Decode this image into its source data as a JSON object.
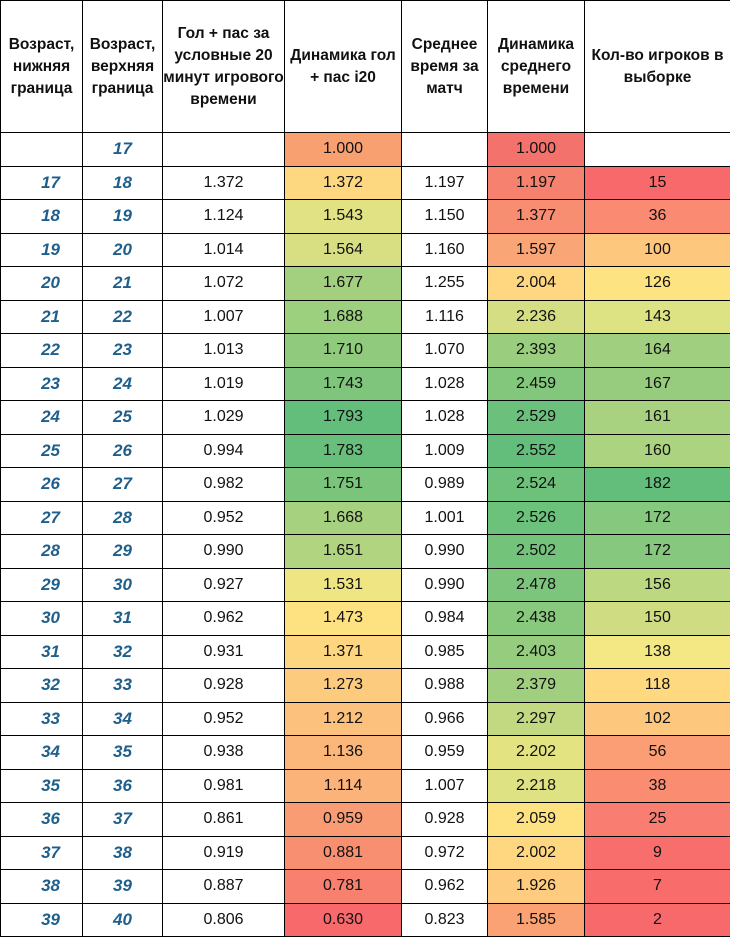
{
  "headers": [
    "Возраст, нижняя граница",
    "Возраст, верхняя граница",
    "Гол + пас за условные 20 минут игрового времени",
    "Динамика гол + пас i20",
    "Среднее время за матч",
    "Динамика среднего времени",
    "Кол-во игроков в выборке"
  ],
  "rows": [
    {
      "lo": "",
      "hi": "17",
      "g": "",
      "gd": "1.000",
      "t": "",
      "td": "1.000",
      "n": "",
      "gd_color": "#f8a070",
      "td_color": "#f4726c",
      "n_color": "#ffffff"
    },
    {
      "lo": "17",
      "hi": "18",
      "g": "1.372",
      "gd": "1.372",
      "t": "1.197",
      "td": "1.197",
      "n": "15",
      "gd_color": "#fed880",
      "td_color": "#f6816f",
      "n_color": "#f8696b"
    },
    {
      "lo": "18",
      "hi": "19",
      "g": "1.124",
      "gd": "1.543",
      "t": "1.150",
      "td": "1.377",
      "n": "36",
      "gd_color": "#e0e283",
      "td_color": "#f88e71",
      "n_color": "#fa8b72"
    },
    {
      "lo": "19",
      "hi": "20",
      "g": "1.014",
      "gd": "1.564",
      "t": "1.160",
      "td": "1.597",
      "n": "100",
      "gd_color": "#d7df82",
      "td_color": "#faa575",
      "n_color": "#fdc77d"
    },
    {
      "lo": "20",
      "hi": "21",
      "g": "1.072",
      "gd": "1.677",
      "t": "1.255",
      "td": "2.004",
      "n": "126",
      "gd_color": "#a2d07f",
      "td_color": "#fed780",
      "n_color": "#fee382"
    },
    {
      "lo": "21",
      "hi": "22",
      "g": "1.007",
      "gd": "1.688",
      "t": "1.116",
      "td": "2.236",
      "n": "143",
      "gd_color": "#9ccf7e",
      "td_color": "#d5de82",
      "n_color": "#dde282"
    },
    {
      "lo": "22",
      "hi": "23",
      "g": "1.013",
      "gd": "1.710",
      "t": "1.070",
      "td": "2.393",
      "n": "164",
      "gd_color": "#90cb7d",
      "td_color": "#9acd7e",
      "n_color": "#a0cf7f"
    },
    {
      "lo": "23",
      "hi": "24",
      "g": "1.019",
      "gd": "1.743",
      "t": "1.028",
      "td": "2.459",
      "n": "167",
      "gd_color": "#7fc67c",
      "td_color": "#83c77c",
      "n_color": "#97cc7e"
    },
    {
      "lo": "24",
      "hi": "25",
      "g": "1.029",
      "gd": "1.793",
      "t": "1.028",
      "td": "2.529",
      "n": "161",
      "gd_color": "#63be7b",
      "td_color": "#6bc17b",
      "n_color": "#a8d27f"
    },
    {
      "lo": "25",
      "hi": "26",
      "g": "0.994",
      "gd": "1.783",
      "t": "1.009",
      "td": "2.552",
      "n": "160",
      "gd_color": "#68bf7b",
      "td_color": "#63be7b",
      "n_color": "#acd37f"
    },
    {
      "lo": "26",
      "hi": "27",
      "g": "0.982",
      "gd": "1.751",
      "t": "0.989",
      "td": "2.524",
      "n": "182",
      "gd_color": "#7ac47c",
      "td_color": "#6dc17b",
      "n_color": "#63be7b"
    },
    {
      "lo": "27",
      "hi": "28",
      "g": "0.952",
      "gd": "1.668",
      "t": "1.001",
      "td": "2.526",
      "n": "172",
      "gd_color": "#a6d17f",
      "td_color": "#6cc17b",
      "n_color": "#86c87d"
    },
    {
      "lo": "28",
      "hi": "29",
      "g": "0.990",
      "gd": "1.651",
      "t": "0.990",
      "td": "2.502",
      "n": "172",
      "gd_color": "#b0d47f",
      "td_color": "#73c37b",
      "n_color": "#86c87d"
    },
    {
      "lo": "29",
      "hi": "30",
      "g": "0.927",
      "gd": "1.531",
      "t": "0.990",
      "td": "2.478",
      "n": "156",
      "gd_color": "#efe683",
      "td_color": "#7dc57c",
      "n_color": "#bcd880"
    },
    {
      "lo": "30",
      "hi": "31",
      "g": "0.962",
      "gd": "1.473",
      "t": "0.984",
      "td": "2.438",
      "n": "150",
      "gd_color": "#fee282",
      "td_color": "#89c97d",
      "n_color": "#d0dc81"
    },
    {
      "lo": "31",
      "hi": "32",
      "g": "0.931",
      "gd": "1.371",
      "t": "0.985",
      "td": "2.403",
      "n": "138",
      "gd_color": "#fed680",
      "td_color": "#95cc7e",
      "n_color": "#f3e883"
    },
    {
      "lo": "32",
      "hi": "33",
      "g": "0.928",
      "gd": "1.273",
      "t": "0.988",
      "td": "2.379",
      "n": "118",
      "gd_color": "#fdcb7e",
      "td_color": "#9fcf7f",
      "n_color": "#fed980"
    },
    {
      "lo": "33",
      "hi": "34",
      "g": "0.952",
      "gd": "1.212",
      "t": "0.966",
      "td": "2.297",
      "n": "102",
      "gd_color": "#fcc17c",
      "td_color": "#c3d981",
      "n_color": "#fdc87d"
    },
    {
      "lo": "34",
      "hi": "35",
      "g": "0.938",
      "gd": "1.136",
      "t": "0.959",
      "td": "2.202",
      "n": "56",
      "gd_color": "#fbb67a",
      "td_color": "#e4e382",
      "n_color": "#fb9e75"
    },
    {
      "lo": "35",
      "hi": "36",
      "g": "0.981",
      "gd": "1.114",
      "t": "1.007",
      "td": "2.218",
      "n": "38",
      "gd_color": "#fbb379",
      "td_color": "#dee283",
      "n_color": "#fa8c72"
    },
    {
      "lo": "36",
      "hi": "37",
      "g": "0.861",
      "gd": "0.959",
      "t": "0.928",
      "td": "2.059",
      "n": "25",
      "gd_color": "#f99c74",
      "td_color": "#fee282",
      "n_color": "#f97d70"
    },
    {
      "lo": "37",
      "hi": "38",
      "g": "0.919",
      "gd": "0.881",
      "t": "0.972",
      "td": "2.002",
      "n": "9",
      "gd_color": "#f88f71",
      "td_color": "#fed780",
      "n_color": "#f86e6c"
    },
    {
      "lo": "38",
      "hi": "39",
      "g": "0.887",
      "gd": "0.781",
      "t": "0.962",
      "td": "1.926",
      "n": "7",
      "gd_color": "#f7806f",
      "td_color": "#fdcc7e",
      "n_color": "#f86c6b"
    },
    {
      "lo": "39",
      "hi": "40",
      "g": "0.806",
      "gd": "0.630",
      "t": "0.823",
      "td": "1.585",
      "n": "2",
      "gd_color": "#f8696b",
      "td_color": "#faa274",
      "n_color": "#f8696b"
    }
  ]
}
